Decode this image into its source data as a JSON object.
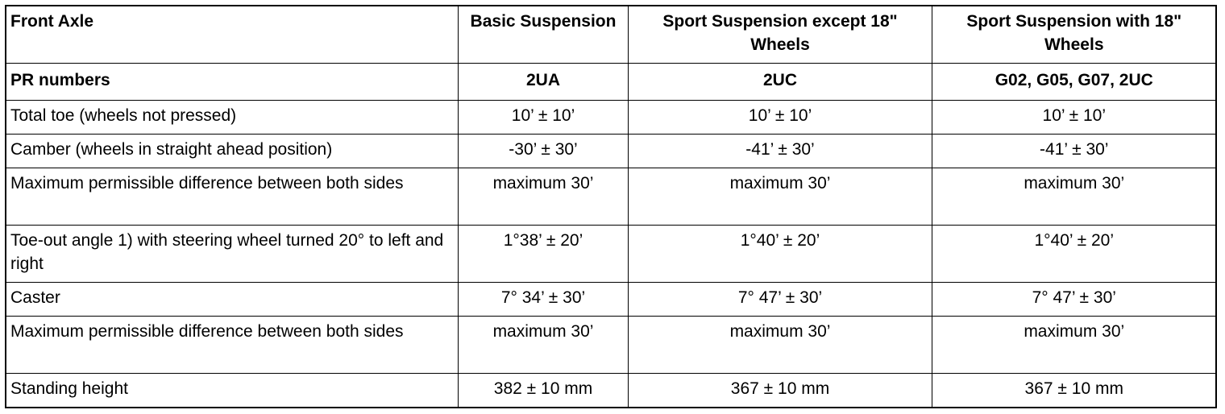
{
  "table": {
    "header": [
      "Front Axle",
      "Basic Suspension",
      "Sport Suspension except 18\" Wheels",
      "Sport Suspension with 18\" Wheels"
    ],
    "rows": [
      [
        "PR numbers",
        "2UA",
        "2UC",
        "G02, G05, G07, 2UC"
      ],
      [
        "Total toe (wheels not pressed)",
        "10’ ± 10’",
        "10’ ± 10’",
        "10’ ± 10’"
      ],
      [
        "Camber (wheels in straight ahead position)",
        "-30’ ± 30’",
        "-41’ ± 30’",
        "-41’ ± 30’"
      ],
      [
        "Maximum permissible difference between both sides",
        "maximum 30’",
        "maximum 30’",
        "maximum 30’"
      ],
      [
        "Toe-out angle 1) with steering wheel turned 20° to left and right",
        "1°38’ ± 20’",
        "1°40’ ± 20’",
        "1°40’ ± 20’"
      ],
      [
        "Caster",
        "7° 34’ ± 30’",
        "7° 47’ ± 30’",
        "7° 47’ ± 30’"
      ],
      [
        "Maximum permissible difference between both sides",
        "maximum 30’",
        "maximum 30’",
        "maximum 30’"
      ],
      [
        "Standing height",
        "382 ± 10 mm",
        "367 ± 10 mm",
        "367 ± 10 mm"
      ]
    ]
  }
}
